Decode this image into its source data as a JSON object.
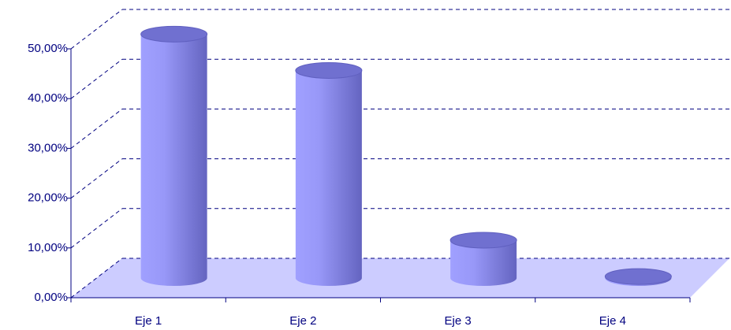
{
  "chart_data": {
    "type": "bar3d",
    "categories": [
      "Eje 1",
      "Eje 2",
      "Eje 3",
      "Eje 4"
    ],
    "values": [
      49,
      41.7,
      7.6,
      0.3
    ],
    "color": "#8c8cf0",
    "ylim": [
      0,
      50
    ],
    "yticks": [
      {
        "value": 0,
        "label": "0,00%"
      },
      {
        "value": 10,
        "label": "10,00%"
      },
      {
        "value": 20,
        "label": "20,00%"
      },
      {
        "value": 30,
        "label": "30,00%"
      },
      {
        "value": 40,
        "label": "40,00%"
      },
      {
        "value": 50,
        "label": "50,00%"
      }
    ],
    "grid": true
  }
}
